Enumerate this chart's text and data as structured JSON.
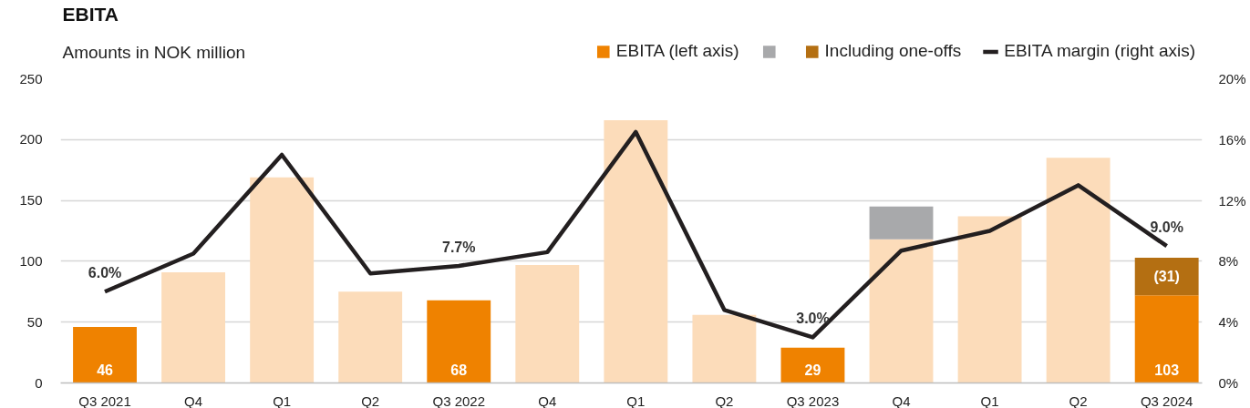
{
  "chart_data": {
    "type": "bar",
    "title": "EBITA",
    "subtitle": "Amounts in NOK million",
    "categories": [
      "Q3 2021",
      "Q4",
      "Q1",
      "Q2",
      "Q3 2022",
      "Q4",
      "Q1",
      "Q2",
      "Q3 2023",
      "Q4",
      "Q1",
      "Q2",
      "Q3 2024"
    ],
    "stacked": true,
    "series": [
      {
        "name": "EBITA (left axis)",
        "color": "#ef8200",
        "colors": [
          "#ef8200",
          "#fcdcba",
          "#fcdcba",
          "#fcdcba",
          "#ef8200",
          "#fcdcba",
          "#fcdcba",
          "#fcdcba",
          "#ef8200",
          "#fcdcba",
          "#fcdcba",
          "#fcdcba",
          "#ef8200"
        ],
        "values": [
          46,
          91,
          169,
          75,
          68,
          97,
          216,
          56,
          29,
          118,
          137,
          185,
          72
        ],
        "value_labels": [
          "46",
          null,
          null,
          null,
          "68",
          null,
          null,
          null,
          "29",
          null,
          null,
          null,
          null
        ]
      },
      {
        "name": "Including one-offs",
        "colors": [
          null,
          null,
          null,
          null,
          null,
          null,
          null,
          null,
          null,
          "#a8a9ab",
          null,
          null,
          "#b46f12"
        ],
        "values": [
          null,
          null,
          null,
          null,
          null,
          null,
          null,
          null,
          null,
          27,
          null,
          null,
          31
        ],
        "value_labels": [
          null,
          null,
          null,
          null,
          null,
          null,
          null,
          null,
          null,
          null,
          null,
          null,
          "(31)"
        ]
      },
      {
        "name": "EBITA margin (right axis)",
        "type": "line",
        "axis": "y2",
        "color": "#231f20",
        "values": [
          6.0,
          8.5,
          15.0,
          7.2,
          7.7,
          8.6,
          16.5,
          4.8,
          3.0,
          8.7,
          10.0,
          13.0,
          9.0
        ],
        "value_labels": [
          "6.0%",
          null,
          null,
          null,
          "7.7%",
          null,
          null,
          null,
          "3.0%",
          null,
          null,
          null,
          "9.0%"
        ]
      }
    ],
    "totals": [
      null,
      null,
      null,
      null,
      null,
      null,
      null,
      null,
      null,
      null,
      null,
      null,
      "103"
    ],
    "ylim": [
      0,
      250
    ],
    "yticks": [
      0,
      50,
      100,
      150,
      200,
      250
    ],
    "y2lim": [
      0,
      20
    ],
    "y2ticks": [
      {
        "value": 0,
        "label": "0%"
      },
      {
        "value": 4,
        "label": "4%"
      },
      {
        "value": 8,
        "label": "8%"
      },
      {
        "value": 12,
        "label": "12%"
      },
      {
        "value": 16,
        "label": "16%"
      },
      {
        "value": 20,
        "label": "20%"
      }
    ],
    "grid": "y",
    "legend": "top right"
  }
}
